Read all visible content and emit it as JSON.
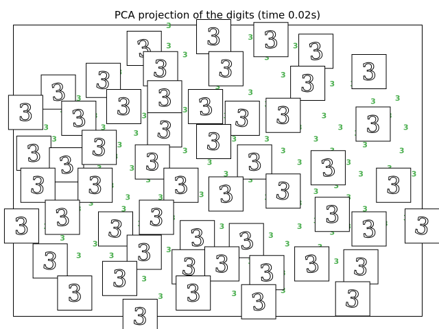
{
  "chart_data": {
    "type": "scatter",
    "title": "PCA projection of the digits (time 0.02s)",
    "xlabel": "",
    "ylabel": "",
    "xlim": [
      0,
      1
    ],
    "ylim": [
      0,
      1
    ],
    "grid": false,
    "axis_ticks": false,
    "point_label": "3",
    "point_color": "#4caf50",
    "series": [
      {
        "points": [
          [
            0.38,
            0.99
          ],
          [
            0.32,
            0.94
          ],
          [
            0.38,
            0.92
          ],
          [
            0.42,
            0.89
          ],
          [
            0.47,
            0.9
          ],
          [
            0.58,
            0.95
          ],
          [
            0.69,
            0.92
          ],
          [
            0.62,
            0.88
          ],
          [
            0.66,
            0.82
          ],
          [
            0.72,
            0.81
          ],
          [
            0.78,
            0.79
          ],
          [
            0.74,
            0.76
          ],
          [
            0.83,
            0.79
          ],
          [
            0.88,
            0.73
          ],
          [
            0.94,
            0.74
          ],
          [
            0.86,
            0.68
          ],
          [
            0.9,
            0.62
          ],
          [
            0.95,
            0.56
          ],
          [
            0.92,
            0.5
          ],
          [
            0.85,
            0.48
          ],
          [
            0.79,
            0.44
          ],
          [
            0.82,
            0.4
          ],
          [
            0.78,
            0.36
          ],
          [
            0.74,
            0.42
          ],
          [
            0.7,
            0.38
          ],
          [
            0.66,
            0.44
          ],
          [
            0.62,
            0.4
          ],
          [
            0.58,
            0.46
          ],
          [
            0.54,
            0.42
          ],
          [
            0.5,
            0.38
          ],
          [
            0.46,
            0.41
          ],
          [
            0.41,
            0.46
          ],
          [
            0.37,
            0.5
          ],
          [
            0.33,
            0.46
          ],
          [
            0.29,
            0.5
          ],
          [
            0.25,
            0.54
          ],
          [
            0.21,
            0.5
          ],
          [
            0.17,
            0.46
          ],
          [
            0.13,
            0.48
          ],
          [
            0.09,
            0.44
          ],
          [
            0.11,
            0.38
          ],
          [
            0.15,
            0.34
          ],
          [
            0.19,
            0.38
          ],
          [
            0.23,
            0.33
          ],
          [
            0.27,
            0.36
          ],
          [
            0.31,
            0.31
          ],
          [
            0.35,
            0.28
          ],
          [
            0.39,
            0.33
          ],
          [
            0.43,
            0.29
          ],
          [
            0.47,
            0.25
          ],
          [
            0.51,
            0.3
          ],
          [
            0.55,
            0.26
          ],
          [
            0.59,
            0.22
          ],
          [
            0.63,
            0.27
          ],
          [
            0.67,
            0.24
          ],
          [
            0.71,
            0.19
          ],
          [
            0.75,
            0.23
          ],
          [
            0.79,
            0.18
          ],
          [
            0.84,
            0.21
          ],
          [
            0.88,
            0.25
          ],
          [
            0.91,
            0.31
          ],
          [
            0.96,
            0.33
          ],
          [
            0.72,
            0.12
          ],
          [
            0.66,
            0.08
          ],
          [
            0.6,
            0.12
          ],
          [
            0.54,
            0.07
          ],
          [
            0.5,
            0.12
          ],
          [
            0.44,
            0.1
          ],
          [
            0.4,
            0.16
          ],
          [
            0.36,
            0.06
          ],
          [
            0.32,
            0.12
          ],
          [
            0.28,
            0.17
          ],
          [
            0.24,
            0.2
          ],
          [
            0.2,
            0.24
          ],
          [
            0.16,
            0.2
          ],
          [
            0.12,
            0.26
          ],
          [
            0.08,
            0.3
          ],
          [
            0.05,
            0.35
          ],
          [
            0.03,
            0.4
          ],
          [
            0.06,
            0.52
          ],
          [
            0.1,
            0.6
          ],
          [
            0.14,
            0.66
          ],
          [
            0.18,
            0.72
          ],
          [
            0.22,
            0.78
          ],
          [
            0.26,
            0.83
          ],
          [
            0.3,
            0.86
          ],
          [
            0.34,
            0.8
          ],
          [
            0.38,
            0.74
          ],
          [
            0.42,
            0.7
          ],
          [
            0.46,
            0.74
          ],
          [
            0.5,
            0.78
          ],
          [
            0.54,
            0.82
          ],
          [
            0.58,
            0.76
          ],
          [
            0.62,
            0.72
          ],
          [
            0.66,
            0.68
          ],
          [
            0.7,
            0.64
          ],
          [
            0.74,
            0.6
          ],
          [
            0.78,
            0.56
          ],
          [
            0.82,
            0.52
          ],
          [
            0.86,
            0.58
          ],
          [
            0.3,
            0.62
          ],
          [
            0.26,
            0.58
          ],
          [
            0.22,
            0.64
          ],
          [
            0.18,
            0.6
          ],
          [
            0.14,
            0.56
          ],
          [
            0.34,
            0.56
          ],
          [
            0.38,
            0.6
          ],
          [
            0.42,
            0.56
          ],
          [
            0.46,
            0.6
          ],
          [
            0.5,
            0.56
          ],
          [
            0.54,
            0.6
          ],
          [
            0.58,
            0.64
          ],
          [
            0.62,
            0.6
          ],
          [
            0.66,
            0.56
          ],
          [
            0.7,
            0.52
          ],
          [
            0.6,
            0.52
          ],
          [
            0.56,
            0.5
          ],
          [
            0.52,
            0.48
          ],
          [
            0.48,
            0.52
          ],
          [
            0.44,
            0.48
          ],
          [
            0.4,
            0.44
          ],
          [
            0.36,
            0.4
          ],
          [
            0.32,
            0.36
          ],
          [
            0.28,
            0.4
          ],
          [
            0.24,
            0.44
          ],
          [
            0.2,
            0.4
          ],
          [
            0.16,
            0.36
          ],
          [
            0.12,
            0.32
          ],
          [
            0.22,
            0.3
          ],
          [
            0.26,
            0.26
          ],
          [
            0.3,
            0.22
          ],
          [
            0.34,
            0.18
          ],
          [
            0.38,
            0.22
          ],
          [
            0.42,
            0.18
          ],
          [
            0.46,
            0.14
          ],
          [
            0.5,
            0.18
          ],
          [
            0.54,
            0.16
          ],
          [
            0.58,
            0.18
          ],
          [
            0.62,
            0.16
          ],
          [
            0.66,
            0.14
          ],
          [
            0.7,
            0.3
          ],
          [
            0.74,
            0.32
          ],
          [
            0.78,
            0.28
          ],
          [
            0.82,
            0.3
          ],
          [
            0.86,
            0.36
          ],
          [
            0.9,
            0.4
          ],
          [
            0.94,
            0.44
          ],
          [
            0.98,
            0.48
          ],
          [
            0.76,
            0.68
          ],
          [
            0.8,
            0.64
          ],
          [
            0.84,
            0.62
          ],
          [
            0.88,
            0.66
          ],
          [
            0.92,
            0.68
          ],
          [
            0.96,
            0.64
          ],
          [
            0.48,
            0.64
          ],
          [
            0.52,
            0.68
          ],
          [
            0.56,
            0.72
          ],
          [
            0.44,
            0.66
          ],
          [
            0.4,
            0.68
          ],
          [
            0.36,
            0.64
          ],
          [
            0.32,
            0.68
          ],
          [
            0.28,
            0.7
          ],
          [
            0.24,
            0.72
          ],
          [
            0.2,
            0.68
          ],
          [
            0.16,
            0.74
          ],
          [
            0.12,
            0.7
          ],
          [
            0.08,
            0.64
          ],
          [
            0.06,
            0.58
          ]
        ]
      }
    ],
    "thumbnails": [
      {
        "x": 0.32,
        "y": 0.92
      },
      {
        "x": 0.36,
        "y": 0.85
      },
      {
        "x": 0.49,
        "y": 0.96
      },
      {
        "x": 0.63,
        "y": 0.95
      },
      {
        "x": 0.74,
        "y": 0.91
      },
      {
        "x": 0.52,
        "y": 0.85
      },
      {
        "x": 0.72,
        "y": 0.8
      },
      {
        "x": 0.87,
        "y": 0.84
      },
      {
        "x": 0.11,
        "y": 0.77
      },
      {
        "x": 0.22,
        "y": 0.81
      },
      {
        "x": 0.27,
        "y": 0.72
      },
      {
        "x": 0.37,
        "y": 0.75
      },
      {
        "x": 0.47,
        "y": 0.72
      },
      {
        "x": 0.56,
        "y": 0.68
      },
      {
        "x": 0.66,
        "y": 0.69
      },
      {
        "x": 0.03,
        "y": 0.7
      },
      {
        "x": 0.16,
        "y": 0.68
      },
      {
        "x": 0.37,
        "y": 0.64
      },
      {
        "x": 0.49,
        "y": 0.6
      },
      {
        "x": 0.88,
        "y": 0.66
      },
      {
        "x": 0.05,
        "y": 0.56
      },
      {
        "x": 0.13,
        "y": 0.52
      },
      {
        "x": 0.21,
        "y": 0.58
      },
      {
        "x": 0.34,
        "y": 0.53
      },
      {
        "x": 0.59,
        "y": 0.53
      },
      {
        "x": 0.77,
        "y": 0.51
      },
      {
        "x": 0.06,
        "y": 0.45
      },
      {
        "x": 0.2,
        "y": 0.45
      },
      {
        "x": 0.41,
        "y": 0.45
      },
      {
        "x": 0.52,
        "y": 0.42
      },
      {
        "x": 0.66,
        "y": 0.43
      },
      {
        "x": 0.93,
        "y": 0.45
      },
      {
        "x": 0.02,
        "y": 0.31
      },
      {
        "x": 0.12,
        "y": 0.34
      },
      {
        "x": 0.25,
        "y": 0.3
      },
      {
        "x": 0.35,
        "y": 0.34
      },
      {
        "x": 0.78,
        "y": 0.35
      },
      {
        "x": 0.87,
        "y": 0.3
      },
      {
        "x": 1.0,
        "y": 0.31
      },
      {
        "x": 0.09,
        "y": 0.19
      },
      {
        "x": 0.32,
        "y": 0.22
      },
      {
        "x": 0.45,
        "y": 0.27
      },
      {
        "x": 0.57,
        "y": 0.26
      },
      {
        "x": 0.43,
        "y": 0.17
      },
      {
        "x": 0.51,
        "y": 0.18
      },
      {
        "x": 0.62,
        "y": 0.15
      },
      {
        "x": 0.73,
        "y": 0.18
      },
      {
        "x": 0.85,
        "y": 0.17
      },
      {
        "x": 0.26,
        "y": 0.13
      },
      {
        "x": 0.44,
        "y": 0.08
      },
      {
        "x": 0.6,
        "y": 0.05
      },
      {
        "x": 0.83,
        "y": 0.06
      },
      {
        "x": 0.31,
        "y": 0.0
      },
      {
        "x": 0.15,
        "y": 0.08
      }
    ],
    "thumbnail_label": "3"
  }
}
